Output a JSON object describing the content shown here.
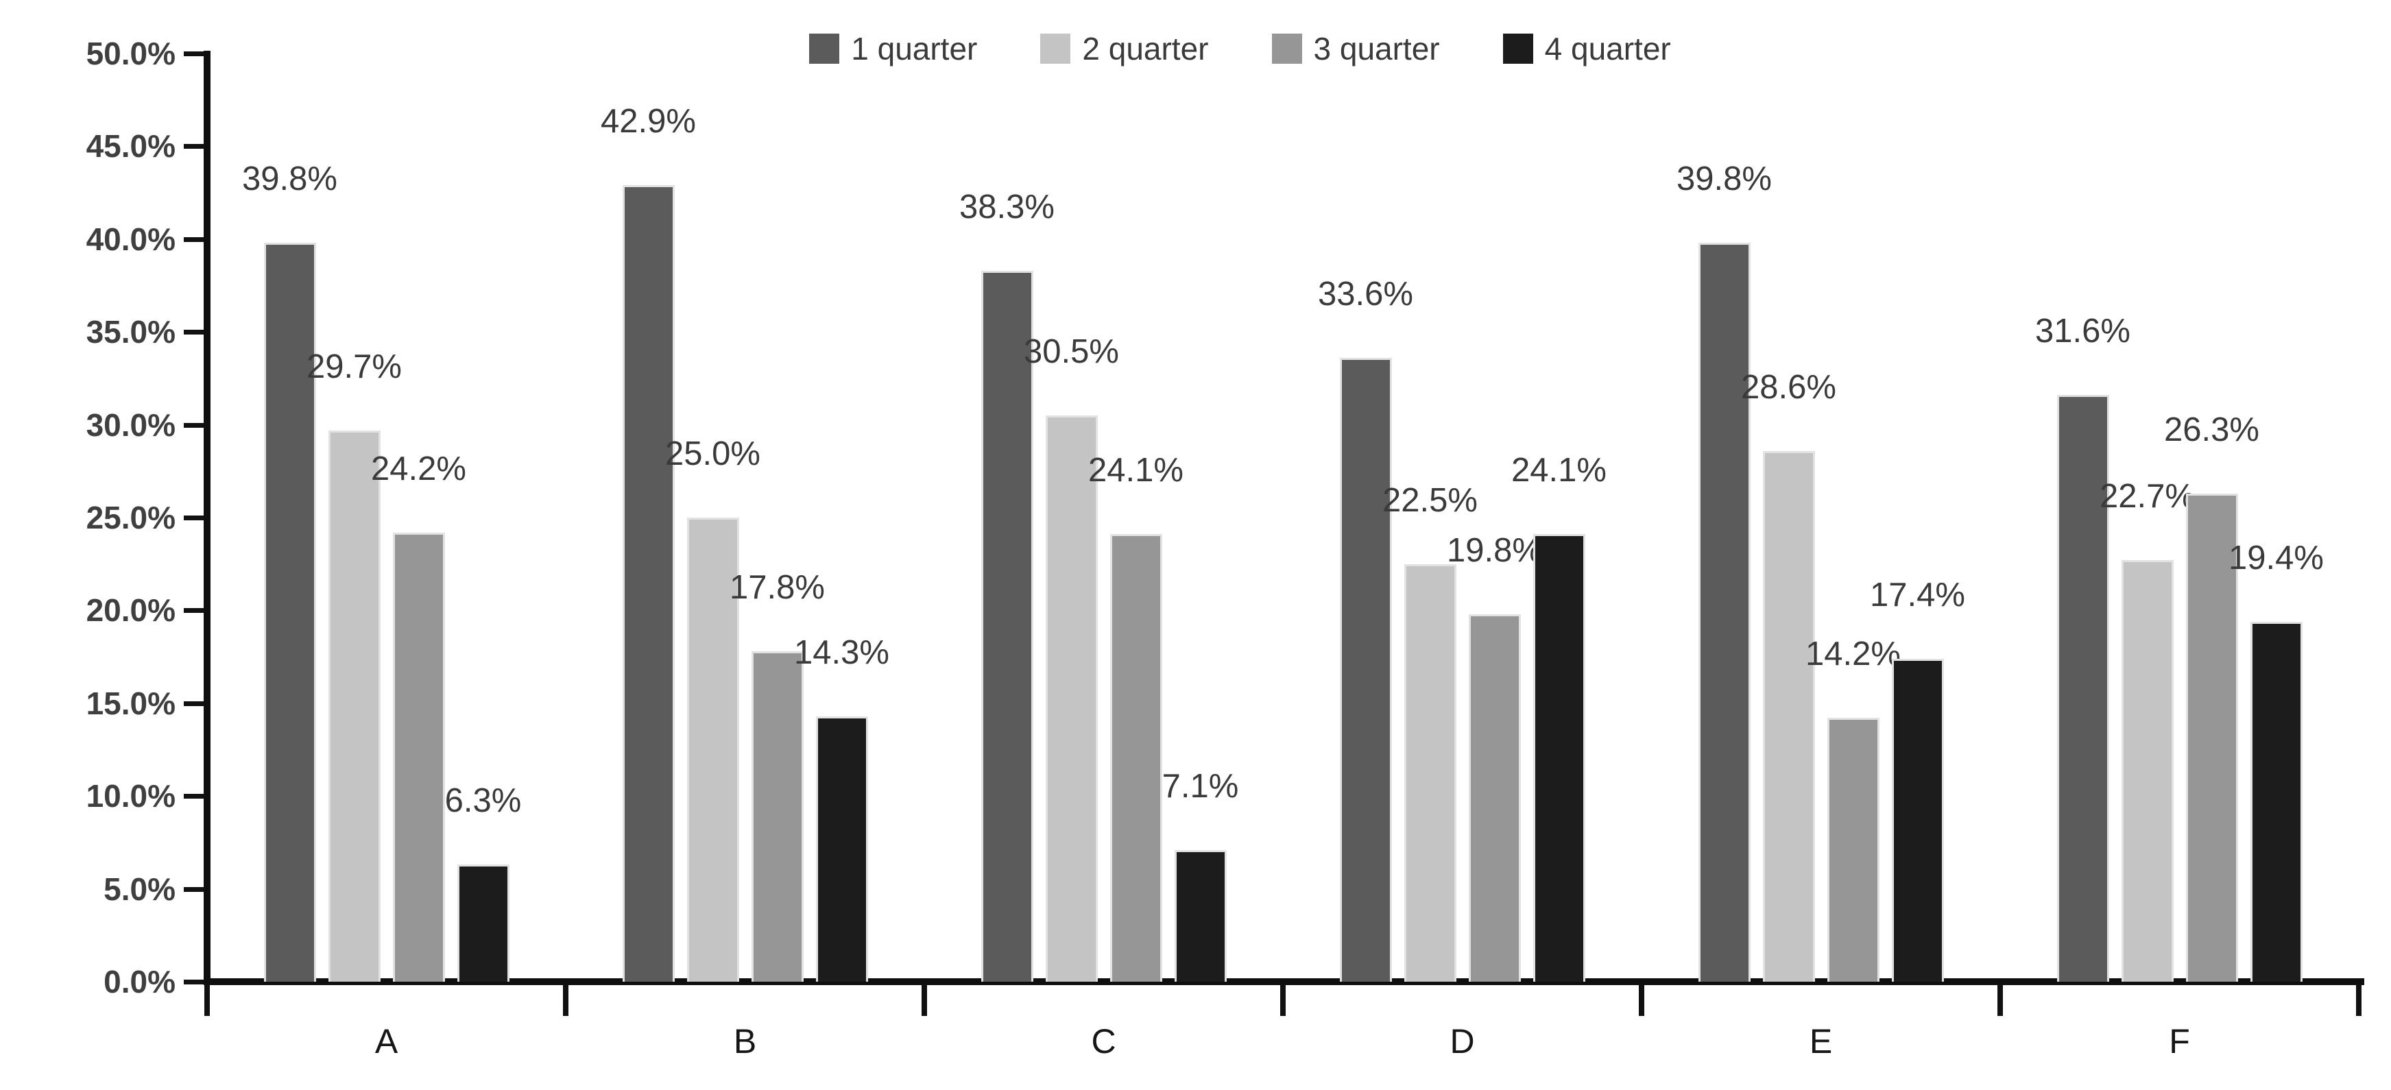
{
  "chart_data": {
    "type": "bar",
    "categories": [
      "A",
      "B",
      "C",
      "D",
      "E",
      "F"
    ],
    "series": [
      {
        "name": "1 quarter",
        "color": "#5b5b5b",
        "values": [
          39.8,
          42.9,
          38.3,
          33.6,
          39.8,
          31.6
        ],
        "labels": [
          "39.8%",
          "42.9%",
          "38.3%",
          "33.6%",
          "39.8%",
          "31.6%"
        ]
      },
      {
        "name": "2 quarter",
        "color": "#c4c4c4",
        "values": [
          29.7,
          25.0,
          30.5,
          22.5,
          28.6,
          22.7
        ],
        "labels": [
          "29.7%",
          "25.0%",
          "30.5%",
          "22.5%",
          "28.6%",
          "22.7%"
        ]
      },
      {
        "name": "3 quarter",
        "color": "#969696",
        "values": [
          24.2,
          17.8,
          24.1,
          19.8,
          14.2,
          26.3
        ],
        "labels": [
          "24.2%",
          "17.8%",
          "24.1%",
          "19.8%",
          "14.2%",
          "26.3%"
        ]
      },
      {
        "name": "4 quarter",
        "color": "#1c1c1c",
        "values": [
          6.3,
          14.3,
          7.1,
          24.1,
          17.4,
          19.4
        ],
        "labels": [
          "6.3%",
          "14.3%",
          "7.1%",
          "24.1%",
          "17.4%",
          "19.4%"
        ]
      }
    ],
    "y_axis": {
      "ticks": [
        "50.0%",
        "45.0%",
        "40.0%",
        "35.0%",
        "30.0%",
        "25.0%",
        "20.0%",
        "15.0%",
        "10.0%",
        "5.0%",
        "0.0%"
      ],
      "min": 0,
      "max": 50,
      "step": 5
    },
    "title": "",
    "xlabel": "",
    "ylabel": "",
    "legend_position": "top",
    "grid": false,
    "background": "#ffffff",
    "axis_color": "#0f0f0f",
    "data_label_color": "#3a3a3a",
    "tick_label_color": "#3f3f3f"
  }
}
